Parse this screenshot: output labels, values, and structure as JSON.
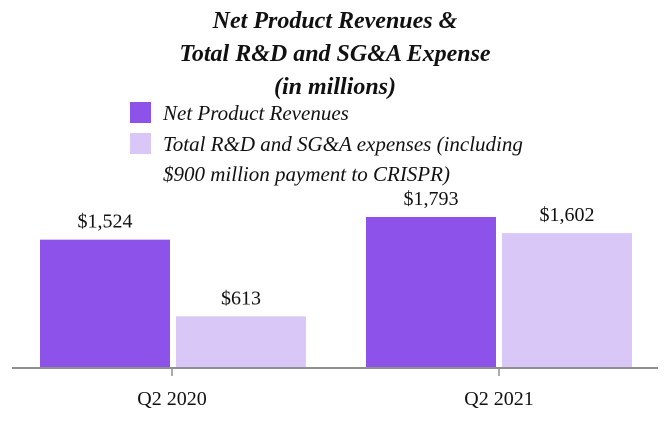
{
  "chart_data": {
    "type": "bar",
    "title_lines": [
      "Net Product Revenues &",
      "Total R&D and SG&A Expense",
      "(in millions)"
    ],
    "categories": [
      "Q2 2020",
      "Q2 2021"
    ],
    "series": [
      {
        "name": "Net Product Revenues",
        "legend_lines": [
          "Net Product Revenues"
        ],
        "color": "#8c52ea",
        "values": [
          1524,
          1793
        ],
        "value_labels": [
          "$1,524",
          "$1,793"
        ]
      },
      {
        "name": "Total R&D and SG&A expenses (including $900 million payment to CRISPR)",
        "legend_lines": [
          "Total R&D and SG&A expenses (including",
          "$900 million payment to CRISPR)"
        ],
        "color": "#d9c7f7",
        "values": [
          613,
          1602
        ],
        "value_labels": [
          "$613",
          "$1,602"
        ]
      }
    ],
    "ylim": [
      0,
      1900
    ],
    "xlabel": "",
    "ylabel": "",
    "grid": false,
    "legend_position": "top-left",
    "axis_color": "#8f8f8f"
  }
}
